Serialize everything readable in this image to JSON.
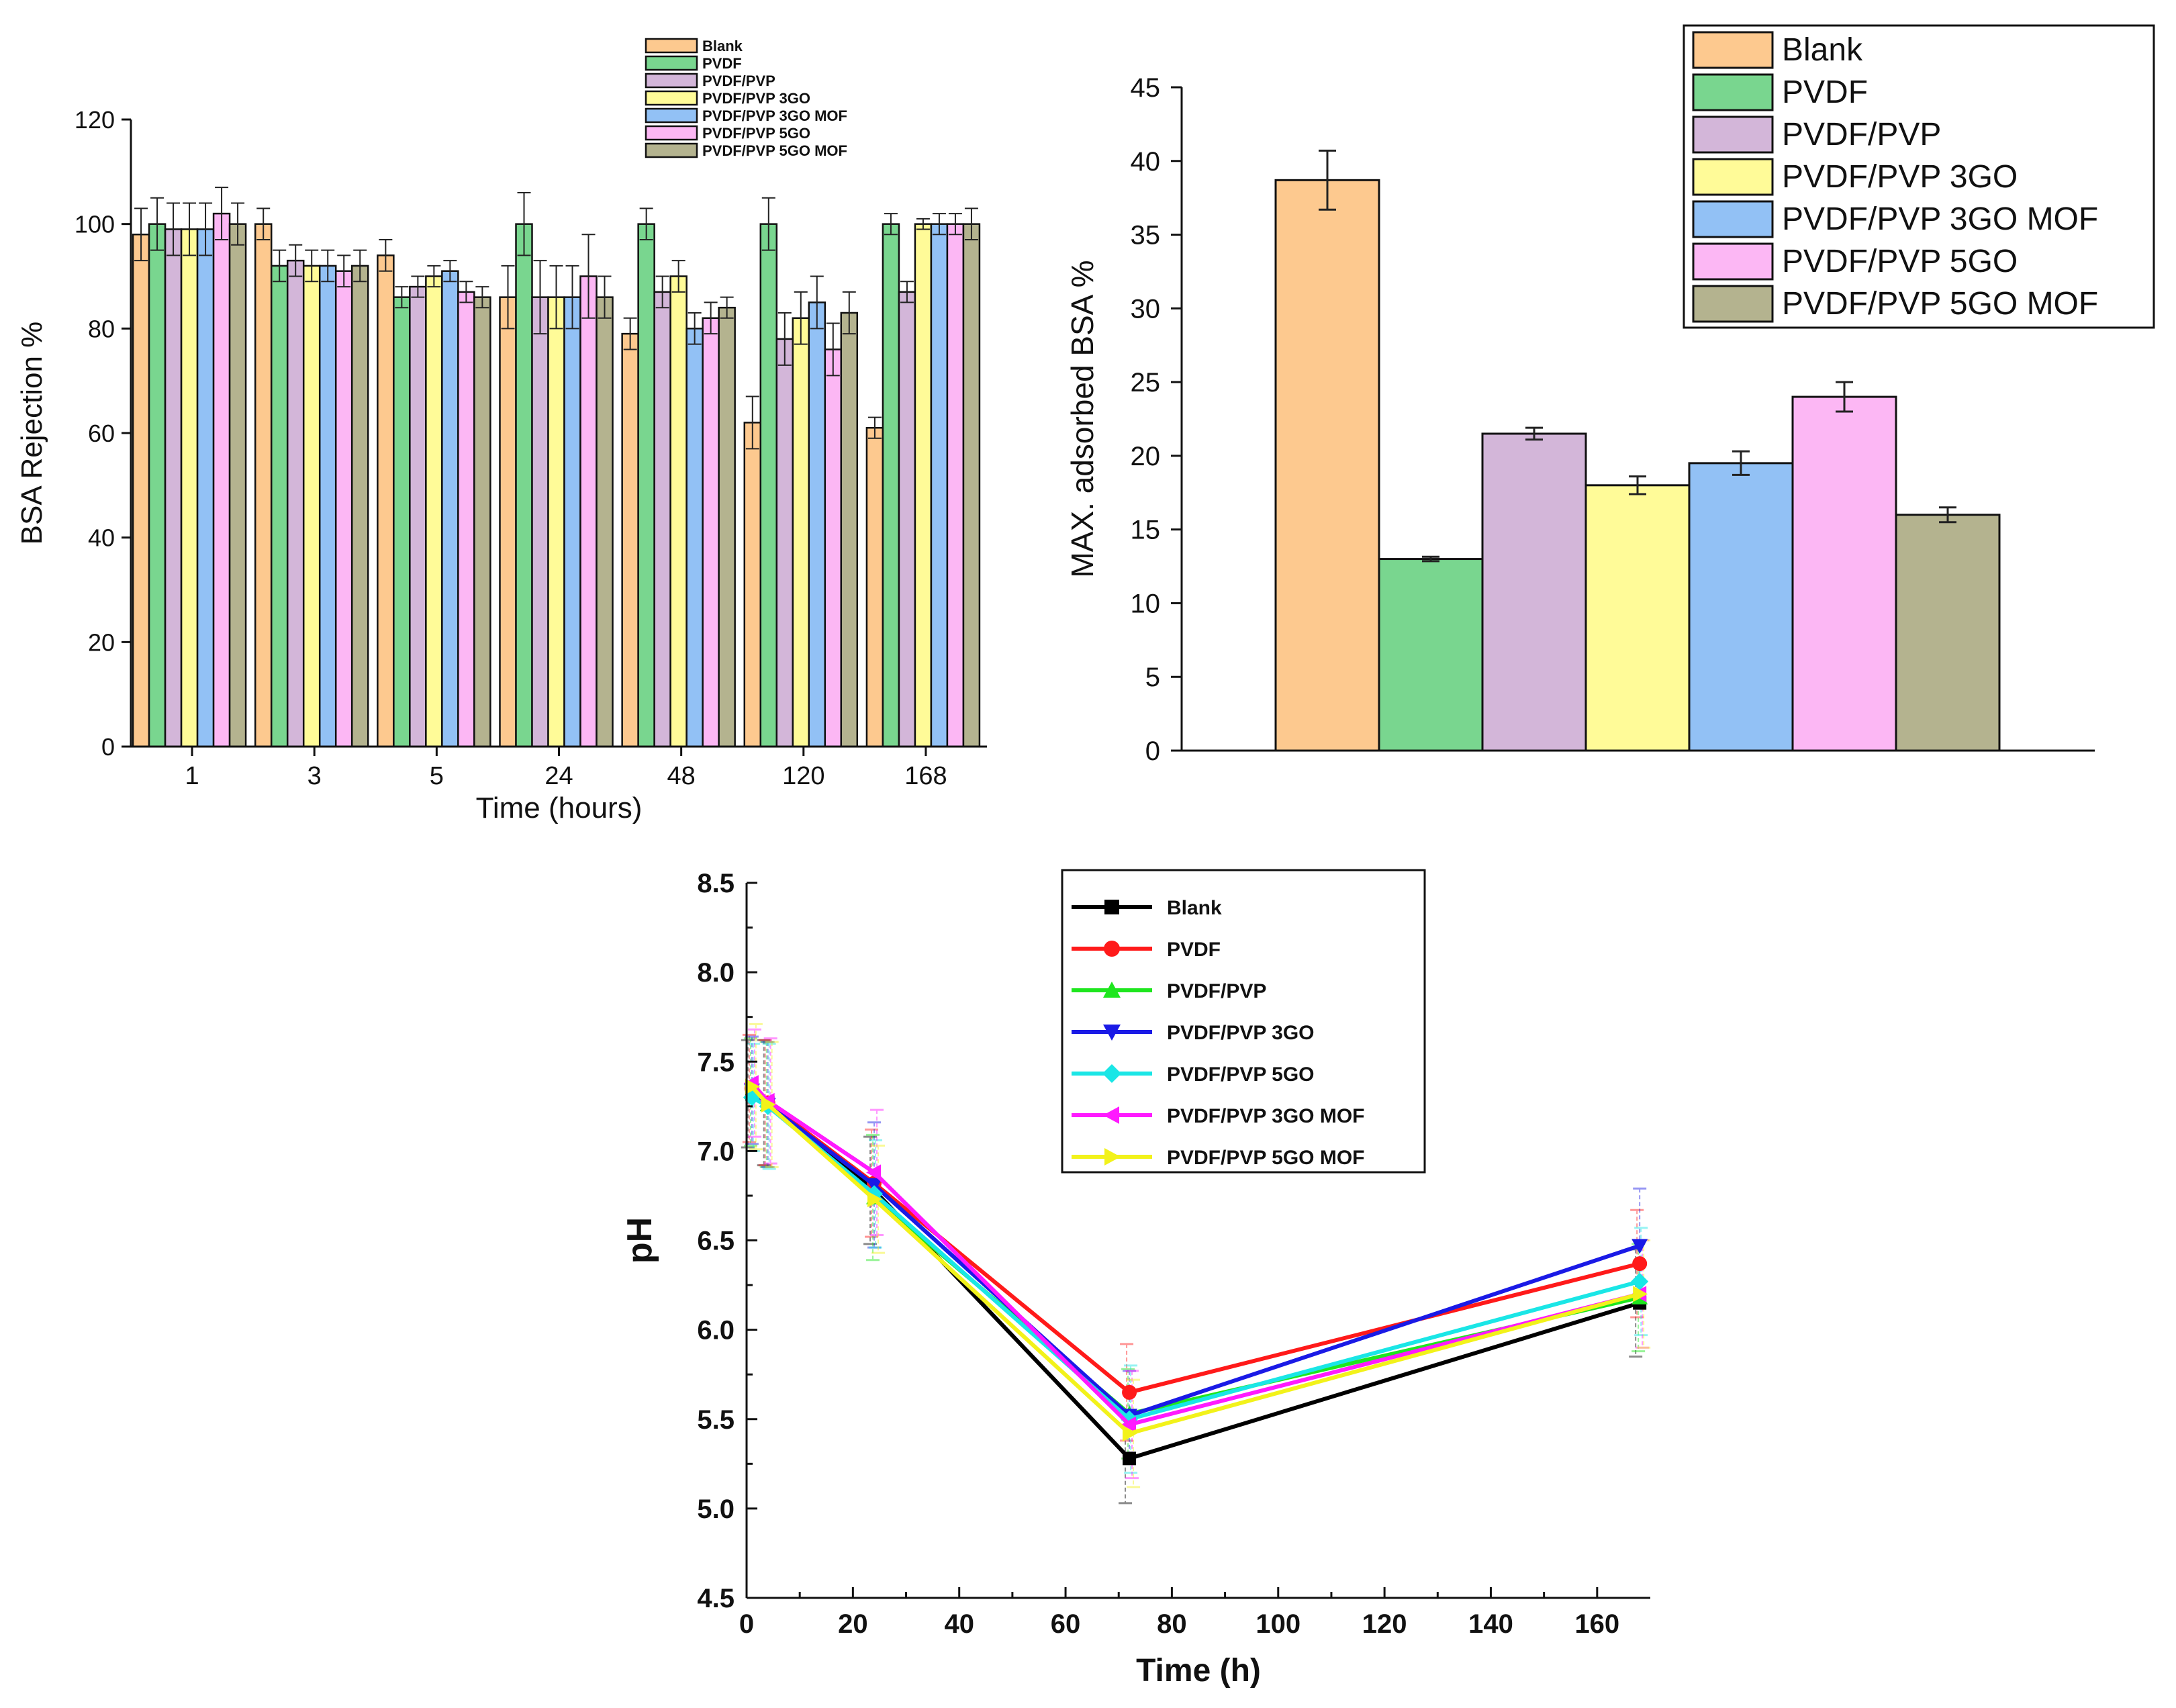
{
  "chart_data": [
    {
      "type": "bar",
      "title": "",
      "xlabel": "Time (hours)",
      "ylabel": "BSA Rejection %",
      "ylim": [
        0,
        120
      ],
      "yticks": [
        "0",
        "20",
        "40",
        "60",
        "80",
        "100",
        "120"
      ],
      "categories": [
        "1",
        "3",
        "5",
        "24",
        "48",
        "120",
        "168"
      ],
      "legend_position": "top-right",
      "series": [
        {
          "name": "Blank",
          "color": "#fdc98f",
          "values": [
            98,
            100,
            94,
            86,
            79,
            62,
            61
          ],
          "errors": [
            5,
            3,
            3,
            6,
            3,
            5,
            2
          ]
        },
        {
          "name": "PVDF",
          "color": "#79d68f",
          "values": [
            100,
            92,
            86,
            100,
            100,
            100,
            100
          ],
          "errors": [
            5,
            3,
            2,
            6,
            3,
            5,
            2
          ]
        },
        {
          "name": "PVDF/PVP",
          "color": "#d3b6d9",
          "values": [
            99,
            93,
            88,
            86,
            87,
            78,
            87
          ],
          "errors": [
            5,
            3,
            2,
            7,
            3,
            5,
            2
          ]
        },
        {
          "name": "PVDF/PVP 3GO",
          "color": "#fffb98",
          "values": [
            99,
            92,
            90,
            86,
            90,
            82,
            100
          ],
          "errors": [
            5,
            3,
            2,
            6,
            3,
            5,
            1
          ]
        },
        {
          "name": "PVDF/PVP 3GO MOF",
          "color": "#92c1f5",
          "values": [
            99,
            92,
            91,
            86,
            80,
            85,
            100
          ],
          "errors": [
            5,
            3,
            2,
            6,
            3,
            5,
            2
          ]
        },
        {
          "name": "PVDF/PVP 5GO",
          "color": "#fcb7f4",
          "values": [
            102,
            91,
            87,
            90,
            82,
            76,
            100
          ],
          "errors": [
            5,
            3,
            2,
            8,
            3,
            5,
            2
          ]
        },
        {
          "name": "PVDF/PVP 5GO MOF",
          "color": "#b4b38f",
          "values": [
            100,
            92,
            86,
            86,
            84,
            83,
            100
          ],
          "errors": [
            4,
            3,
            2,
            4,
            2,
            4,
            3
          ]
        }
      ]
    },
    {
      "type": "bar",
      "title": "",
      "xlabel": "",
      "ylabel": "MAX. adsorbed BSA %",
      "ylim": [
        0,
        45
      ],
      "yticks": [
        "0",
        "5",
        "10",
        "15",
        "20",
        "25",
        "30",
        "35",
        "40",
        "45"
      ],
      "legend_position": "top-right",
      "bars": [
        {
          "name": "Blank",
          "color": "#fdc98f",
          "value": 38.7,
          "error": 2.0
        },
        {
          "name": "PVDF",
          "color": "#79d68f",
          "value": 13.0,
          "error": 0.15
        },
        {
          "name": "PVDF/PVP",
          "color": "#d3b6d9",
          "value": 21.5,
          "error": 0.4
        },
        {
          "name": "PVDF/PVP 3GO",
          "color": "#fffb98",
          "value": 18.0,
          "error": 0.6
        },
        {
          "name": "PVDF/PVP 3GO MOF",
          "color": "#92c1f5",
          "value": 19.5,
          "error": 0.8
        },
        {
          "name": "PVDF/PVP 5GO",
          "color": "#fcb7f4",
          "value": 24.0,
          "error": 1.0
        },
        {
          "name": "PVDF/PVP 5GO MOF",
          "color": "#b4b38f",
          "value": 16.0,
          "error": 0.5
        }
      ]
    },
    {
      "type": "line",
      "title": "",
      "xlabel": "Time (h)",
      "ylabel": "pH",
      "xlim": [
        0,
        170
      ],
      "ylim": [
        4.5,
        8.5
      ],
      "xticks": [
        "0",
        "20",
        "40",
        "60",
        "80",
        "100",
        "120",
        "140",
        "160"
      ],
      "yticks": [
        "4.5",
        "5.0",
        "5.5",
        "6.0",
        "6.5",
        "7.0",
        "7.5",
        "8.0",
        "8.5"
      ],
      "legend_position": "top-left",
      "x": [
        1,
        4,
        24,
        72,
        168
      ],
      "series": [
        {
          "name": "Blank",
          "color": "#000000",
          "marker": "square",
          "values": [
            7.32,
            7.27,
            6.78,
            5.28,
            6.15
          ],
          "errors": [
            0.3,
            0.35,
            0.3,
            0.25,
            0.3
          ]
        },
        {
          "name": "PVDF",
          "color": "#ff1a1a",
          "marker": "circle",
          "values": [
            7.35,
            7.27,
            6.82,
            5.65,
            6.37
          ],
          "errors": [
            0.3,
            0.35,
            0.3,
            0.27,
            0.3
          ]
        },
        {
          "name": "PVDF/PVP",
          "color": "#1ee61e",
          "marker": "triangle-up",
          "values": [
            7.33,
            7.26,
            6.74,
            5.53,
            6.18
          ],
          "errors": [
            0.3,
            0.35,
            0.35,
            0.25,
            0.3
          ]
        },
        {
          "name": "PVDF/PVP 3GO",
          "color": "#1a1ae6",
          "marker": "triangle-down",
          "values": [
            7.34,
            7.26,
            6.81,
            5.52,
            6.47
          ],
          "errors": [
            0.3,
            0.35,
            0.35,
            0.25,
            0.32
          ]
        },
        {
          "name": "PVDF/PVP 5GO",
          "color": "#1ae6e6",
          "marker": "diamond",
          "values": [
            7.3,
            7.25,
            6.76,
            5.5,
            6.27
          ],
          "errors": [
            0.3,
            0.35,
            0.3,
            0.3,
            0.3
          ]
        },
        {
          "name": "PVDF/PVP 3GO MOF",
          "color": "#ff1aff",
          "marker": "triangle-left",
          "values": [
            7.38,
            7.28,
            6.88,
            5.47,
            6.2
          ],
          "errors": [
            0.3,
            0.35,
            0.35,
            0.3,
            0.3
          ]
        },
        {
          "name": "PVDF/PVP 5GO MOF",
          "color": "#f2f21a",
          "marker": "triangle-right",
          "values": [
            7.36,
            7.26,
            6.73,
            5.42,
            6.2
          ],
          "errors": [
            0.35,
            0.35,
            0.3,
            0.3,
            0.3
          ]
        }
      ]
    }
  ]
}
